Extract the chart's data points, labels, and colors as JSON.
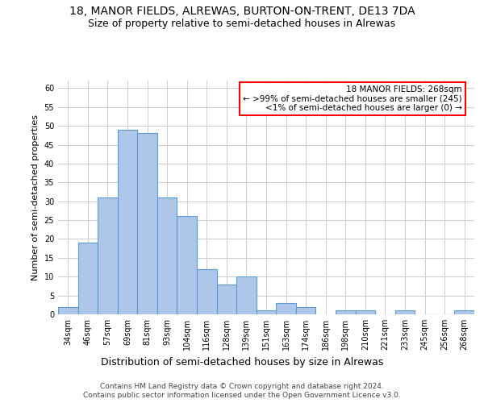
{
  "title": "18, MANOR FIELDS, ALREWAS, BURTON-ON-TRENT, DE13 7DA",
  "subtitle": "Size of property relative to semi-detached houses in Alrewas",
  "xlabel_bottom": "Distribution of semi-detached houses by size in Alrewas",
  "ylabel": "Number of semi-detached properties",
  "categories": [
    "34sqm",
    "46sqm",
    "57sqm",
    "69sqm",
    "81sqm",
    "93sqm",
    "104sqm",
    "116sqm",
    "128sqm",
    "139sqm",
    "151sqm",
    "163sqm",
    "174sqm",
    "186sqm",
    "198sqm",
    "210sqm",
    "221sqm",
    "233sqm",
    "245sqm",
    "256sqm",
    "268sqm"
  ],
  "values": [
    2,
    19,
    31,
    49,
    48,
    31,
    26,
    12,
    8,
    10,
    1,
    3,
    2,
    0,
    1,
    1,
    0,
    1,
    0,
    0,
    1
  ],
  "bar_color": "#aec6e8",
  "bar_edge_color": "#5b9bd5",
  "annotation_box_text": "18 MANOR FIELDS: 268sqm\n← >99% of semi-detached houses are smaller (245)\n<1% of semi-detached houses are larger (0) →",
  "annotation_box_edge_color": "red",
  "annotation_box_bg": "white",
  "ylim": [
    0,
    62
  ],
  "yticks": [
    0,
    5,
    10,
    15,
    20,
    25,
    30,
    35,
    40,
    45,
    50,
    55,
    60
  ],
  "grid_color": "#cccccc",
  "footer_line1": "Contains HM Land Registry data © Crown copyright and database right 2024.",
  "footer_line2": "Contains public sector information licensed under the Open Government Licence v3.0.",
  "title_fontsize": 10,
  "subtitle_fontsize": 9,
  "tick_fontsize": 7,
  "ylabel_fontsize": 8,
  "xlabel_bottom_fontsize": 9,
  "annotation_fontsize": 7.5,
  "footer_fontsize": 6.5
}
